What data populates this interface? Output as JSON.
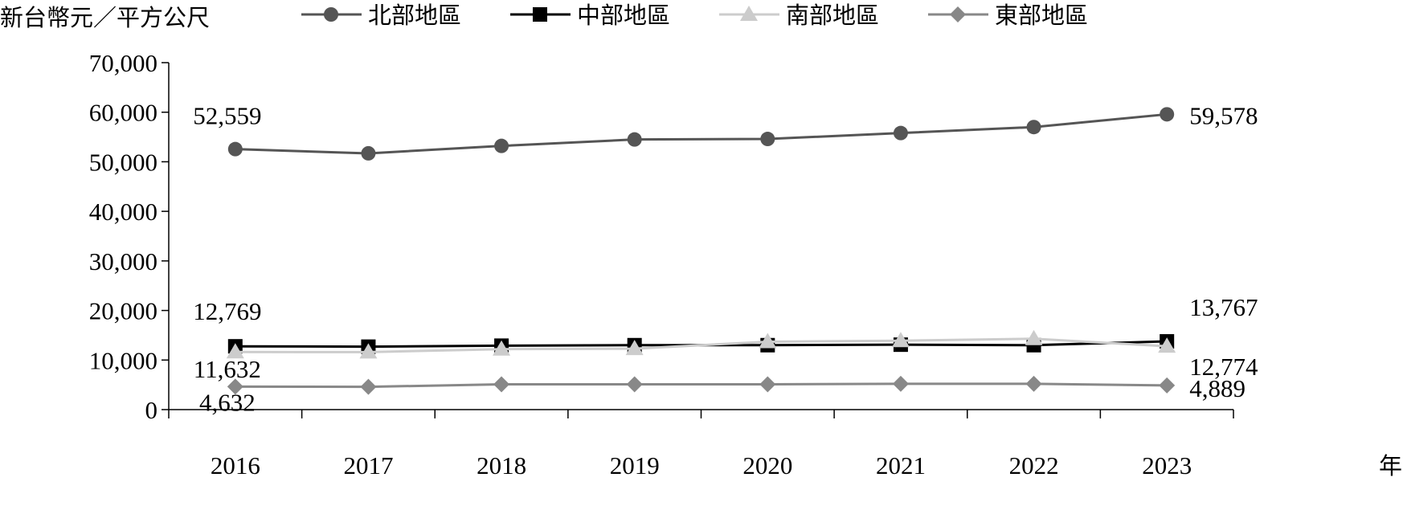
{
  "chart_data": {
    "type": "line",
    "ylabel": "新台幣元／平方公尺",
    "xlabel": "年",
    "x": [
      "2016",
      "2017",
      "2018",
      "2019",
      "2020",
      "2021",
      "2022",
      "2023"
    ],
    "ylim": [
      0,
      70000
    ],
    "yticks": [
      "0",
      "10,000",
      "20,000",
      "30,000",
      "40,000",
      "50,000",
      "60,000",
      "70,000"
    ],
    "legend_position": "top",
    "series": [
      {
        "name": "北部地區",
        "color": "#555555",
        "marker": "circle",
        "values": [
          52559,
          51700,
          53200,
          54500,
          54600,
          55800,
          57000,
          59578
        ],
        "labels": {
          "first": "52,559",
          "last": "59,578"
        }
      },
      {
        "name": "中部地區",
        "color": "#000000",
        "marker": "square",
        "values": [
          12769,
          12700,
          12900,
          13000,
          13000,
          13100,
          13000,
          13767
        ],
        "labels": {
          "first": "12,769",
          "last": "13,767"
        }
      },
      {
        "name": "南部地區",
        "color": "#cccccc",
        "marker": "triangle",
        "values": [
          11632,
          11600,
          12200,
          12300,
          13700,
          13900,
          14300,
          12774
        ],
        "labels": {
          "first": "11,632",
          "last": "12,774"
        }
      },
      {
        "name": "東部地區",
        "color": "#888888",
        "marker": "diamond",
        "values": [
          4632,
          4600,
          5100,
          5100,
          5100,
          5200,
          5200,
          4889
        ],
        "labels": {
          "first": "4,632",
          "last": "4,889"
        }
      }
    ]
  }
}
